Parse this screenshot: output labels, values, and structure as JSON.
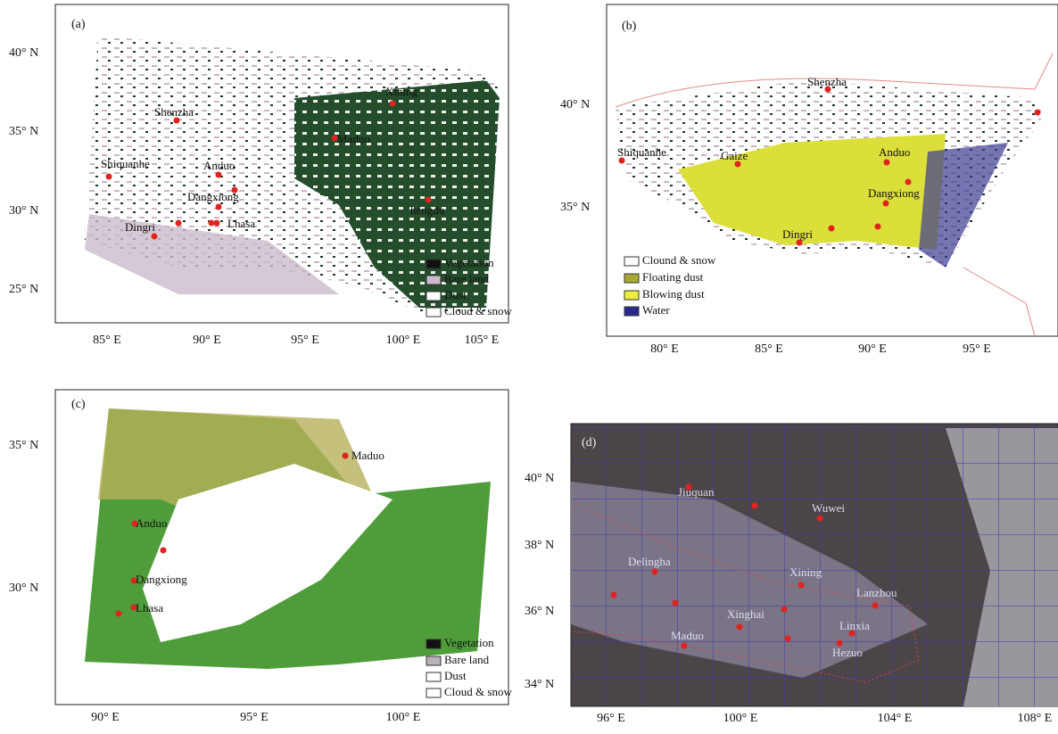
{
  "panels": [
    {
      "label": "(a)",
      "y_ticks": [
        "40° N",
        "35° N",
        "30° N",
        "25° N"
      ],
      "x_ticks": [
        "85° E",
        "90° E",
        "95° E",
        "100° E",
        "105° E"
      ],
      "cities": [
        "Xining",
        "Shenzha",
        "Maduo",
        "Shiquanhe",
        "Anduo",
        "Dangxiong",
        "hengdu",
        "Lhasa",
        "Dingri"
      ],
      "legend": [
        "Vegetation",
        "Bare land",
        "Dust",
        "Cloud & snow"
      ]
    },
    {
      "label": "(b)",
      "y_ticks": [
        "40° N",
        "35° N"
      ],
      "x_ticks": [
        "80° E",
        "85° E",
        "90° E",
        "95° E"
      ],
      "cities": [
        "Shenzha",
        "Shiquanhe",
        "Gaize",
        "Anduo",
        "Dangxiong",
        "Dingri"
      ],
      "legend": [
        "Clound & snow",
        "Floating dust",
        "Blowing dust",
        "Water"
      ]
    },
    {
      "label": "(c)",
      "y_ticks": [
        "35° N",
        "30° N"
      ],
      "x_ticks": [
        "90° E",
        "95° E",
        "100° E"
      ],
      "cities": [
        "Maduo",
        "Anduo",
        "Dangxiong",
        "Lhasa"
      ],
      "legend": [
        "Vegetation",
        "Bare land",
        "Dust",
        "Cloud & snow"
      ]
    },
    {
      "label": "(d)",
      "y_ticks": [
        "40° N",
        "38° N",
        "36° N",
        "34° N"
      ],
      "x_ticks": [
        "96° E",
        "100° E",
        "104° E",
        "108° E"
      ],
      "cities": [
        "Jiuquan",
        "Wuwei",
        "Delingha",
        "Xining",
        "Lanzhou",
        "Xinghai",
        "Linxia",
        "Maduo",
        "Hezuo"
      ]
    }
  ]
}
